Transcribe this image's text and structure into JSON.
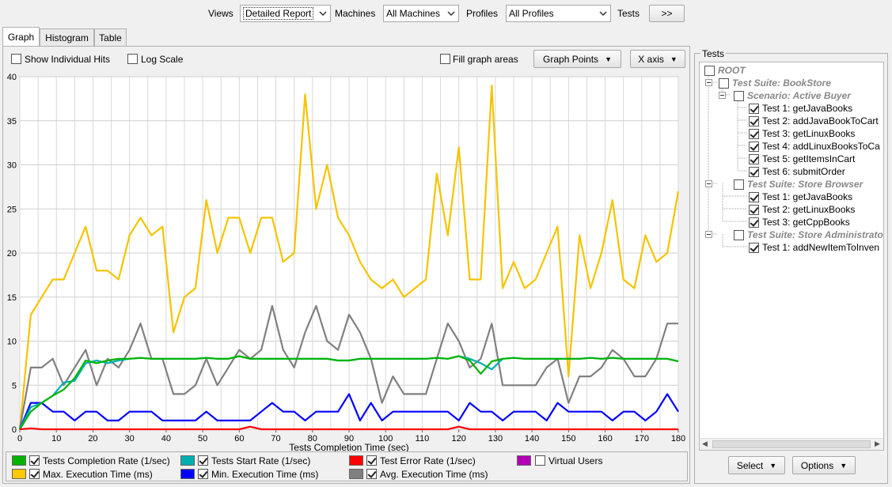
{
  "toolbar": {
    "views_label": "Views",
    "views_value": "Detailed Report",
    "machines_label": "Machines",
    "machines_value": "All Machines",
    "profiles_label": "Profiles",
    "profiles_value": "All Profiles",
    "tests_label": "Tests",
    "tests_button": ">>"
  },
  "tabs": [
    {
      "label": "Graph",
      "active": true
    },
    {
      "label": "Histogram",
      "active": false
    },
    {
      "label": "Table",
      "active": false
    }
  ],
  "options": {
    "show_individual_hits": "Show Individual Hits",
    "log_scale": "Log Scale",
    "fill_graph_areas": "Fill graph areas",
    "graph_points": "Graph Points",
    "x_axis": "X axis"
  },
  "legend": [
    {
      "label": "Tests Completion Rate (1/sec)",
      "color": "#00b400",
      "checked": true
    },
    {
      "label": "Tests Start Rate (1/sec)",
      "color": "#00b0b0",
      "checked": true
    },
    {
      "label": "Test Error Rate (1/sec)",
      "color": "#ff0000",
      "checked": true
    },
    {
      "label": "Virtual Users",
      "color": "#b400b4",
      "checked": false
    },
    {
      "label": "Max. Execution Time (ms)",
      "color": "#ffc800",
      "checked": true
    },
    {
      "label": "Min. Execution Time (ms)",
      "color": "#0000ff",
      "checked": true
    },
    {
      "label": "Avg. Execution Time (ms)",
      "color": "#808080",
      "checked": true
    }
  ],
  "tests_panel": {
    "title": "Tests",
    "root": "ROOT",
    "suite1": "Test Suite: BookStore",
    "scenario1": "Scenario: Active Buyer",
    "scenario1_tests": [
      "Test 1: getJavaBooks",
      "Test 2: addJavaBookToCart",
      "Test 3: getLinuxBooks",
      "Test 4: addLinuxBooksToCa",
      "Test 5: getItemsInCart",
      "Test 6: submitOrder"
    ],
    "suite2": "Test Suite: Store Browser",
    "suite2_tests": [
      "Test 1: getJavaBooks",
      "Test 2: getLinuxBooks",
      "Test 3: getCppBooks"
    ],
    "suite3": "Test Suite: Store Administrato",
    "suite3_tests": [
      "Test 1: addNewItemToInven"
    ],
    "select_button": "Select",
    "options_button": "Options"
  },
  "chart_data": {
    "type": "line",
    "xlabel": "Tests Completion Time (sec)",
    "ylabel": "",
    "xlim": [
      0,
      180
    ],
    "ylim": [
      0,
      40
    ],
    "xticks": [
      0,
      10,
      20,
      30,
      40,
      50,
      60,
      70,
      80,
      90,
      100,
      110,
      120,
      130,
      140,
      150,
      160,
      170,
      180
    ],
    "yticks": [
      0,
      5,
      10,
      15,
      20,
      25,
      30,
      35,
      40
    ],
    "grid": true,
    "series": [
      {
        "name": "Max. Execution Time (ms)",
        "color": "#f5c400",
        "x": [
          0,
          3,
          6,
          9,
          12,
          15,
          18,
          21,
          24,
          27,
          30,
          33,
          36,
          39,
          42,
          45,
          48,
          51,
          54,
          57,
          60,
          63,
          66,
          69,
          72,
          75,
          78,
          81,
          84,
          87,
          90,
          93,
          96,
          99,
          102,
          105,
          108,
          111,
          114,
          117,
          120,
          123,
          126,
          129,
          132,
          135,
          138,
          141,
          144,
          147,
          150,
          153,
          156,
          159,
          162,
          165,
          168,
          171,
          174,
          177,
          180
        ],
        "y": [
          0,
          13,
          15,
          17,
          17,
          20,
          23,
          18,
          18,
          17,
          22,
          24,
          22,
          23,
          11,
          15,
          16,
          26,
          20,
          24,
          24,
          20,
          24,
          24,
          19,
          20,
          38,
          25,
          30,
          24,
          22,
          19,
          17,
          16,
          17,
          15,
          16,
          17,
          29,
          22,
          32,
          17,
          17,
          39,
          16,
          19,
          16,
          17,
          20,
          23,
          6,
          22,
          16,
          20,
          26,
          17,
          16,
          22,
          19,
          20,
          27
        ]
      },
      {
        "name": "Avg. Execution Time (ms)",
        "color": "#808080",
        "x": [
          0,
          3,
          6,
          9,
          12,
          15,
          18,
          21,
          24,
          27,
          30,
          33,
          36,
          39,
          42,
          45,
          48,
          51,
          54,
          57,
          60,
          63,
          66,
          69,
          72,
          75,
          78,
          81,
          84,
          87,
          90,
          93,
          96,
          99,
          102,
          105,
          108,
          111,
          114,
          117,
          120,
          123,
          126,
          129,
          132,
          135,
          138,
          141,
          144,
          147,
          150,
          153,
          156,
          159,
          162,
          165,
          168,
          171,
          174,
          177,
          180
        ],
        "y": [
          0,
          7,
          7,
          8,
          5,
          7,
          9,
          5,
          8,
          7,
          9,
          12,
          8,
          8,
          4,
          4,
          5,
          8,
          5,
          7,
          9,
          8,
          9,
          14,
          9,
          7,
          11,
          14,
          10,
          9,
          13,
          11,
          8,
          3,
          6,
          4,
          4,
          4,
          8,
          12,
          10,
          7,
          8,
          12,
          5,
          5,
          5,
          5,
          7,
          8,
          3,
          6,
          6,
          7,
          9,
          8,
          6,
          6,
          8,
          12,
          12
        ]
      },
      {
        "name": "Min. Execution Time (ms)",
        "color": "#0000ff",
        "x": [
          0,
          3,
          6,
          9,
          12,
          15,
          18,
          21,
          24,
          27,
          30,
          33,
          36,
          39,
          42,
          45,
          48,
          51,
          54,
          57,
          60,
          63,
          66,
          69,
          72,
          75,
          78,
          81,
          84,
          87,
          90,
          93,
          96,
          99,
          102,
          105,
          108,
          111,
          114,
          117,
          120,
          123,
          126,
          129,
          132,
          135,
          138,
          141,
          144,
          147,
          150,
          153,
          156,
          159,
          162,
          165,
          168,
          171,
          174,
          177,
          180
        ],
        "y": [
          0,
          3,
          3,
          2,
          2,
          1,
          2,
          2,
          1,
          1,
          2,
          2,
          2,
          1,
          1,
          1,
          1,
          2,
          1,
          1,
          1,
          1,
          2,
          3,
          2,
          2,
          1,
          2,
          2,
          2,
          4,
          1,
          3,
          1,
          2,
          2,
          2,
          2,
          2,
          2,
          1,
          3,
          2,
          2,
          1,
          2,
          2,
          2,
          1,
          3,
          2,
          2,
          2,
          2,
          1,
          2,
          2,
          1,
          2,
          4,
          2
        ]
      },
      {
        "name": "Tests Start Rate (1/sec)",
        "color": "#00b0b0",
        "x": [
          0,
          3,
          6,
          9,
          12,
          15,
          18,
          21,
          24,
          27,
          30,
          33,
          36,
          39,
          42,
          45,
          48,
          51,
          54,
          57,
          60,
          63,
          66,
          69,
          72,
          75,
          78,
          81,
          84,
          87,
          90,
          93,
          96,
          99,
          102,
          105,
          108,
          111,
          114,
          117,
          120,
          123,
          126,
          129,
          132,
          135,
          138,
          141,
          144,
          147,
          150,
          153,
          156,
          159,
          162,
          165,
          168,
          171,
          174,
          177,
          180
        ],
        "y": [
          0,
          2.5,
          3,
          3.8,
          5.3,
          5.5,
          7.5,
          7.8,
          7.5,
          7.8,
          8,
          8.1,
          8,
          8,
          8,
          8,
          8,
          8.1,
          8,
          8,
          8.3,
          8,
          8,
          8,
          8,
          8,
          8,
          8,
          8,
          7.8,
          7.8,
          8,
          8,
          8,
          8,
          8,
          8,
          8,
          8.1,
          8,
          8.3,
          8,
          7.5,
          6.8,
          8,
          8.1,
          8,
          8,
          8,
          8,
          8,
          8,
          8.1,
          8,
          8.1,
          8,
          8,
          8,
          8,
          8,
          7.7
        ]
      },
      {
        "name": "Tests Completion Rate (1/sec)",
        "color": "#00b400",
        "x": [
          0,
          3,
          6,
          9,
          12,
          15,
          18,
          21,
          24,
          27,
          30,
          33,
          36,
          39,
          42,
          45,
          48,
          51,
          54,
          57,
          60,
          63,
          66,
          69,
          72,
          75,
          78,
          81,
          84,
          87,
          90,
          93,
          96,
          99,
          102,
          105,
          108,
          111,
          114,
          117,
          120,
          123,
          126,
          129,
          132,
          135,
          138,
          141,
          144,
          147,
          150,
          153,
          156,
          159,
          162,
          165,
          168,
          171,
          174,
          177,
          180
        ],
        "y": [
          0,
          2,
          3,
          3.8,
          4.5,
          5.8,
          7.8,
          7.5,
          7.8,
          8,
          8,
          8.1,
          8,
          8,
          8,
          8,
          8,
          8.1,
          8,
          8,
          8.3,
          8,
          8,
          8,
          8,
          8,
          8,
          8,
          8,
          7.8,
          7.8,
          8,
          8,
          8,
          8,
          8,
          8,
          8,
          8.1,
          8,
          8.3,
          7.8,
          6.3,
          7.7,
          8,
          8.1,
          8,
          8,
          8,
          8,
          8,
          8,
          8.1,
          8,
          8.1,
          8,
          8,
          8,
          8,
          8,
          7.7
        ]
      },
      {
        "name": "Test Error Rate (1/sec)",
        "color": "#ff0000",
        "x": [
          0,
          3,
          6,
          9,
          60,
          63,
          66,
          117,
          120,
          123,
          180
        ],
        "y": [
          0,
          0.1,
          0,
          0,
          0,
          0.3,
          0,
          0,
          0.3,
          0,
          0
        ]
      }
    ]
  }
}
